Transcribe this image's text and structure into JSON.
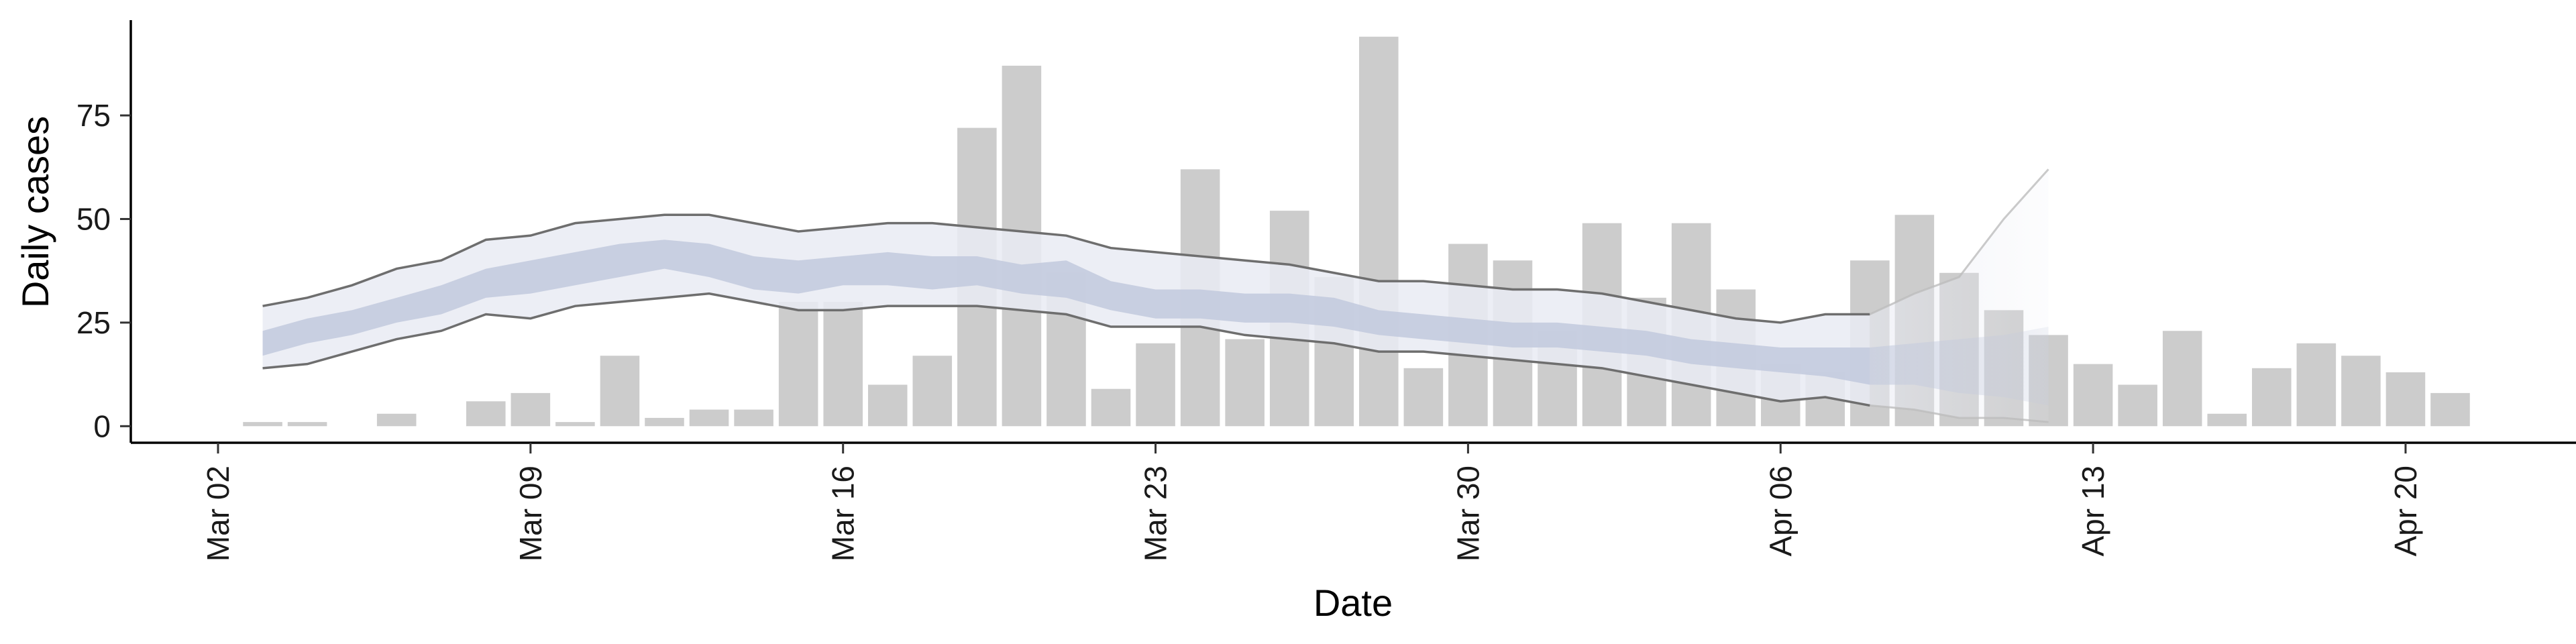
{
  "chart_data": {
    "type": "bar",
    "xlabel": "Date",
    "ylabel": "Daily cases",
    "ylim": [
      -4,
      98
    ],
    "grid": false,
    "bar_color": "#cccccc",
    "band_outer_color": "#e9ebf3",
    "band_inner_color": "#c2c9dd",
    "line_color": "#6e6e6e",
    "y_ticks": [
      0,
      25,
      50,
      75
    ],
    "x_ticks": [
      "Mar 02",
      "Mar 09",
      "Mar 16",
      "Mar 23",
      "Mar 30",
      "Apr 06",
      "Apr 13",
      "Apr 20"
    ],
    "x_tick_dates": [
      "2020-03-02",
      "2020-03-09",
      "2020-03-16",
      "2020-03-23",
      "2020-03-30",
      "2020-04-06",
      "2020-04-13",
      "2020-04-20"
    ],
    "bars": {
      "dates": [
        "2020-03-03",
        "2020-03-04",
        "2020-03-05",
        "2020-03-06",
        "2020-03-07",
        "2020-03-08",
        "2020-03-09",
        "2020-03-10",
        "2020-03-11",
        "2020-03-12",
        "2020-03-13",
        "2020-03-14",
        "2020-03-15",
        "2020-03-16",
        "2020-03-17",
        "2020-03-18",
        "2020-03-19",
        "2020-03-20",
        "2020-03-21",
        "2020-03-22",
        "2020-03-23",
        "2020-03-24",
        "2020-03-25",
        "2020-03-26",
        "2020-03-27",
        "2020-03-28",
        "2020-03-29",
        "2020-03-30",
        "2020-03-31",
        "2020-04-01",
        "2020-04-02",
        "2020-04-03",
        "2020-04-04",
        "2020-04-05",
        "2020-04-06",
        "2020-04-07",
        "2020-04-08",
        "2020-04-09",
        "2020-04-10",
        "2020-04-11",
        "2020-04-12",
        "2020-04-13",
        "2020-04-14",
        "2020-04-15",
        "2020-04-16",
        "2020-04-17",
        "2020-04-18",
        "2020-04-19",
        "2020-04-20",
        "2020-04-21"
      ],
      "values": [
        1,
        1,
        0,
        3,
        0,
        6,
        8,
        1,
        17,
        2,
        4,
        4,
        30,
        30,
        10,
        17,
        72,
        87,
        37,
        9,
        20,
        62,
        21,
        52,
        36,
        94,
        14,
        44,
        40,
        23,
        49,
        31,
        49,
        33,
        15,
        13,
        40,
        51,
        37,
        28,
        22,
        15,
        10,
        23,
        3,
        14,
        20,
        17,
        13,
        8
      ]
    },
    "band": {
      "dates": [
        "2020-03-03",
        "2020-03-04",
        "2020-03-05",
        "2020-03-06",
        "2020-03-07",
        "2020-03-08",
        "2020-03-09",
        "2020-03-10",
        "2020-03-11",
        "2020-03-12",
        "2020-03-13",
        "2020-03-14",
        "2020-03-15",
        "2020-03-16",
        "2020-03-17",
        "2020-03-18",
        "2020-03-19",
        "2020-03-20",
        "2020-03-21",
        "2020-03-22",
        "2020-03-23",
        "2020-03-24",
        "2020-03-25",
        "2020-03-26",
        "2020-03-27",
        "2020-03-28",
        "2020-03-29",
        "2020-03-30",
        "2020-03-31",
        "2020-04-01",
        "2020-04-02",
        "2020-04-03",
        "2020-04-04",
        "2020-04-05",
        "2020-04-06",
        "2020-04-07",
        "2020-04-08",
        "2020-04-09",
        "2020-04-10",
        "2020-04-11",
        "2020-04-12"
      ],
      "outer_upper": [
        29,
        31,
        34,
        38,
        40,
        45,
        46,
        49,
        50,
        51,
        51,
        49,
        47,
        48,
        49,
        49,
        48,
        47,
        46,
        43,
        42,
        41,
        40,
        39,
        37,
        35,
        35,
        34,
        33,
        33,
        32,
        30,
        28,
        26,
        25,
        27,
        27,
        32,
        36,
        50,
        62
      ],
      "outer_lower": [
        14,
        15,
        18,
        21,
        23,
        27,
        26,
        29,
        30,
        31,
        32,
        30,
        28,
        28,
        29,
        29,
        29,
        28,
        27,
        24,
        24,
        24,
        22,
        21,
        20,
        18,
        18,
        17,
        16,
        15,
        14,
        12,
        10,
        8,
        6,
        7,
        5,
        4,
        2,
        2,
        1
      ],
      "inner_upper": [
        23,
        26,
        28,
        31,
        34,
        38,
        40,
        42,
        44,
        45,
        44,
        41,
        40,
        41,
        42,
        41,
        41,
        39,
        40,
        35,
        33,
        33,
        32,
        32,
        31,
        28,
        27,
        26,
        25,
        25,
        24,
        23,
        21,
        20,
        19,
        19,
        19,
        20,
        21,
        22,
        24
      ],
      "inner_lower": [
        17,
        20,
        22,
        25,
        27,
        31,
        32,
        34,
        36,
        38,
        36,
        33,
        32,
        34,
        34,
        33,
        34,
        32,
        31,
        28,
        26,
        26,
        25,
        25,
        24,
        22,
        21,
        20,
        19,
        19,
        18,
        17,
        15,
        14,
        13,
        12,
        10,
        10,
        8,
        7,
        5
      ],
      "forecast_start": "2020-04-08"
    }
  }
}
